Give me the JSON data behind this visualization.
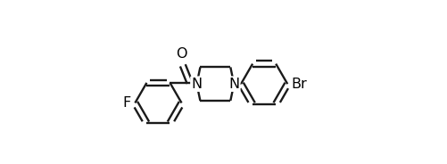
{
  "background_color": "#ffffff",
  "line_color": "#1a1a1a",
  "line_width": 1.7,
  "text_color": "#000000",
  "font_size": 10.5,
  "figsize": [
    5.01,
    1.84
  ],
  "dpi": 100,
  "xlim": [
    0.0,
    10.0
  ],
  "ylim": [
    -3.8,
    3.2
  ]
}
